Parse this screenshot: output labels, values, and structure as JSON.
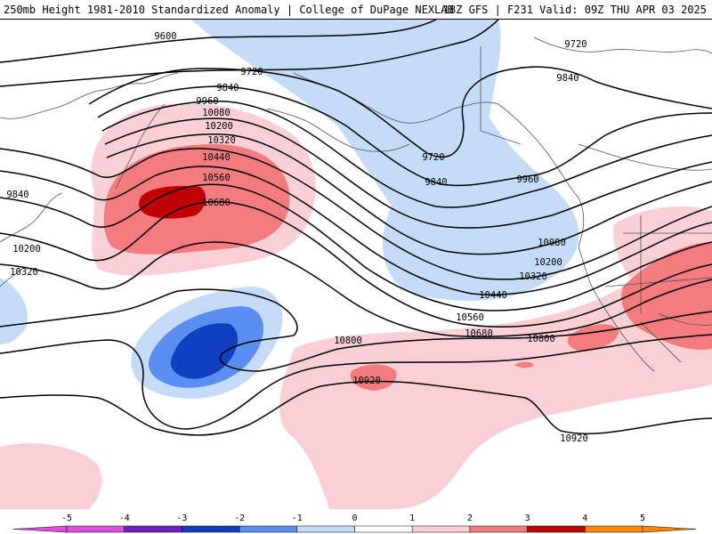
{
  "header": {
    "title_left": "250mb Height 1981-2010 Standardized Anomaly | College of DuPage NEXLAB",
    "title_right": "18Z GFS | F231 Valid: 09Z THU APR 03 2025"
  },
  "colors": {
    "anom_neg5": "#e050e0",
    "anom_neg4": "#7020c0",
    "anom_neg3": "#1040c0",
    "anom_neg2": "#5a8ef0",
    "anom_neg1": "#c4dcf8",
    "anom_pos1": "#fbd0d4",
    "anom_pos2": "#f47c7e",
    "anom_pos3": "#c00000",
    "anom_pos4": "#ff8800",
    "contour": "#000000",
    "coast": "#555555"
  },
  "legend": {
    "ticks": [
      "-5",
      "-4",
      "-3",
      "-2",
      "-1",
      "0",
      "1",
      "2",
      "3",
      "4",
      "5"
    ]
  },
  "contours": {
    "labels": [
      {
        "text": "9600"
      },
      {
        "text": "9720"
      },
      {
        "text": "9840"
      },
      {
        "text": "9960"
      },
      {
        "text": "10080"
      },
      {
        "text": "10200"
      },
      {
        "text": "10320"
      },
      {
        "text": "10440"
      },
      {
        "text": "10560"
      },
      {
        "text": "10680"
      },
      {
        "text": "9840"
      },
      {
        "text": "10200"
      },
      {
        "text": "10320"
      },
      {
        "text": "9720"
      },
      {
        "text": "9840"
      },
      {
        "text": "9720"
      },
      {
        "text": "9840"
      },
      {
        "text": "9960"
      },
      {
        "text": "10080"
      },
      {
        "text": "10200"
      },
      {
        "text": "10320"
      },
      {
        "text": "10440"
      },
      {
        "text": "10560"
      },
      {
        "text": "10680"
      },
      {
        "text": "10800"
      },
      {
        "text": "10800"
      },
      {
        "text": "10920"
      },
      {
        "text": "10920"
      }
    ]
  }
}
